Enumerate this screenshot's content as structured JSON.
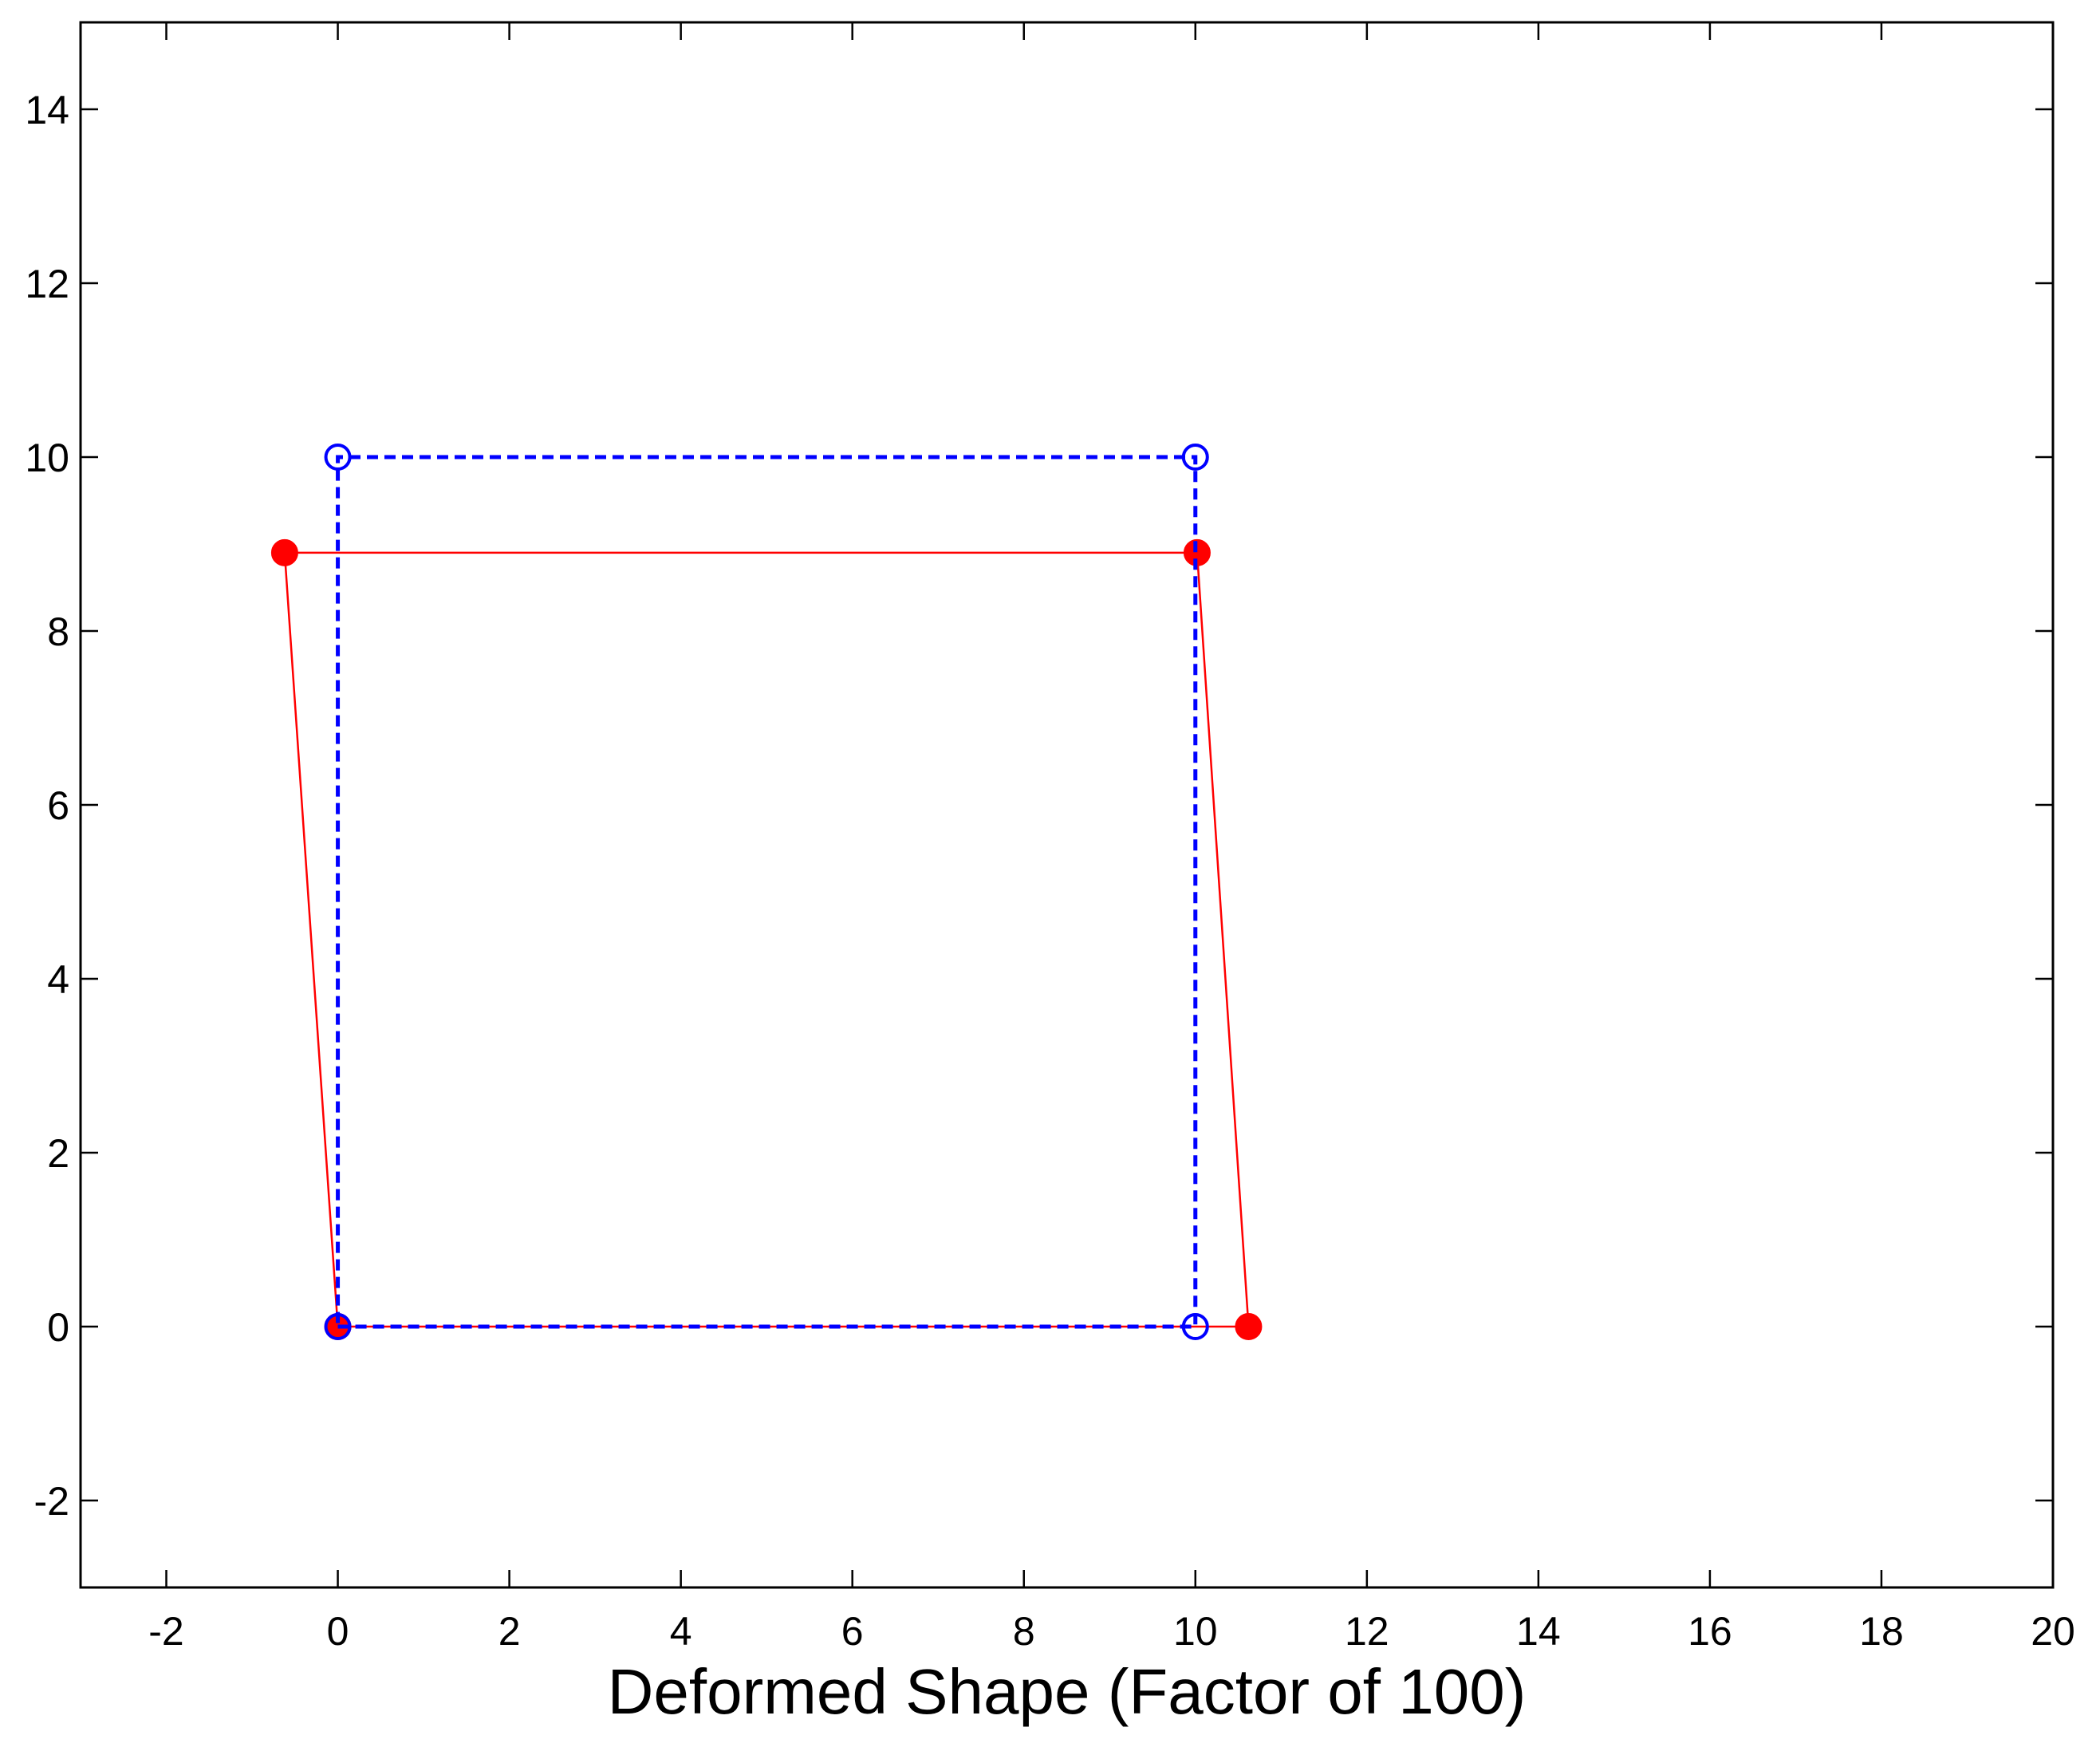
{
  "chart_data": {
    "type": "line",
    "title": "",
    "xlabel": "Deformed Shape (Factor of 100)",
    "ylabel": "",
    "xlim": [
      -3,
      20
    ],
    "ylim": [
      -3,
      15
    ],
    "xticks": [
      -2,
      0,
      2,
      4,
      6,
      8,
      10,
      12,
      14,
      16,
      18,
      20
    ],
    "yticks": [
      -2,
      0,
      2,
      4,
      6,
      8,
      10,
      12,
      14
    ],
    "grid": false,
    "series": [
      {
        "role": "original",
        "color": "#0000ff",
        "line_style": "dashed",
        "marker": "open-circle",
        "points": [
          {
            "x": 0,
            "y": 0
          },
          {
            "x": 10,
            "y": 0
          },
          {
            "x": 10,
            "y": 10
          },
          {
            "x": 0,
            "y": 10
          },
          {
            "x": 0,
            "y": 0
          }
        ]
      },
      {
        "role": "deformed",
        "color": "#ff0000",
        "line_style": "solid",
        "marker": "filled-circle",
        "points": [
          {
            "x": 0,
            "y": 0
          },
          {
            "x": 10.62,
            "y": 0
          },
          {
            "x": 10.02,
            "y": 8.9
          },
          {
            "x": -0.62,
            "y": 8.9
          },
          {
            "x": 0,
            "y": 0
          }
        ]
      }
    ]
  }
}
